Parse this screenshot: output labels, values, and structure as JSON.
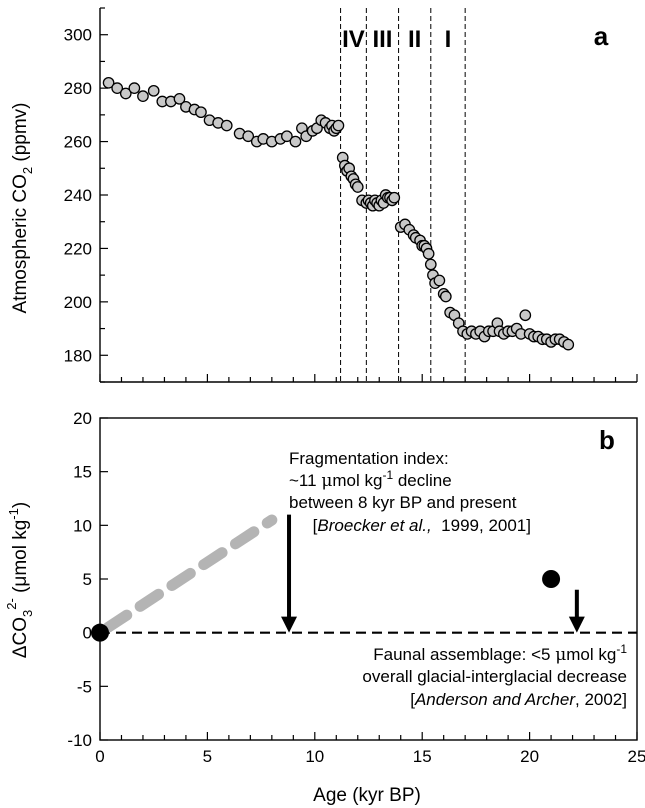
{
  "chart_data": [
    {
      "panel": "a",
      "type": "scatter",
      "ylabel": "Atmospheric CO2 (ppmv)",
      "ylabel_parts": {
        "main": "Atmospheric CO",
        "sub": "2",
        "units": " (ppmv)"
      },
      "xlim": [
        0,
        25
      ],
      "ylim": [
        170,
        310
      ],
      "yticks": [
        180,
        200,
        220,
        240,
        260,
        280,
        300
      ],
      "yminor": [
        170,
        190,
        210,
        230,
        250,
        270,
        290,
        310
      ],
      "stage_boundaries": [
        11.2,
        12.4,
        13.9,
        15.4,
        17.0
      ],
      "stages": [
        {
          "label": "IV",
          "x": 11.8
        },
        {
          "label": "III",
          "x": 13.15
        },
        {
          "label": "II",
          "x": 14.65
        },
        {
          "label": "I",
          "x": 16.2
        }
      ],
      "marker": {
        "fill": "#c8c8c8",
        "stroke": "#000000"
      },
      "points": [
        [
          0.4,
          282
        ],
        [
          0.8,
          280
        ],
        [
          1.2,
          278
        ],
        [
          1.6,
          280
        ],
        [
          2.0,
          277
        ],
        [
          2.5,
          279
        ],
        [
          2.9,
          275
        ],
        [
          3.3,
          275
        ],
        [
          3.7,
          276
        ],
        [
          4.0,
          273
        ],
        [
          4.4,
          272
        ],
        [
          4.7,
          271
        ],
        [
          5.1,
          268
        ],
        [
          5.5,
          267
        ],
        [
          5.9,
          266
        ],
        [
          6.5,
          263
        ],
        [
          6.9,
          262
        ],
        [
          7.3,
          260
        ],
        [
          7.6,
          261
        ],
        [
          8.0,
          260
        ],
        [
          8.4,
          261
        ],
        [
          8.7,
          262
        ],
        [
          9.1,
          260
        ],
        [
          9.4,
          265
        ],
        [
          9.6,
          262
        ],
        [
          9.9,
          264
        ],
        [
          10.1,
          265
        ],
        [
          10.3,
          268
        ],
        [
          10.5,
          267
        ],
        [
          10.7,
          265
        ],
        [
          10.8,
          266
        ],
        [
          10.9,
          264
        ],
        [
          11.0,
          265
        ],
        [
          11.1,
          266
        ],
        [
          11.3,
          254
        ],
        [
          11.4,
          251
        ],
        [
          11.5,
          249
        ],
        [
          11.6,
          250
        ],
        [
          11.7,
          247
        ],
        [
          11.8,
          246
        ],
        [
          11.9,
          244
        ],
        [
          12.0,
          243
        ],
        [
          12.2,
          238
        ],
        [
          12.4,
          237
        ],
        [
          12.5,
          238
        ],
        [
          12.6,
          237
        ],
        [
          12.7,
          236
        ],
        [
          12.8,
          238
        ],
        [
          12.9,
          237
        ],
        [
          13.0,
          236
        ],
        [
          13.1,
          238
        ],
        [
          13.2,
          237
        ],
        [
          13.3,
          240
        ],
        [
          13.4,
          239
        ],
        [
          13.5,
          239
        ],
        [
          13.6,
          238
        ],
        [
          13.7,
          239
        ],
        [
          14.0,
          228
        ],
        [
          14.2,
          229
        ],
        [
          14.4,
          227
        ],
        [
          14.6,
          225
        ],
        [
          14.7,
          224
        ],
        [
          14.9,
          223
        ],
        [
          15.0,
          221
        ],
        [
          15.1,
          221
        ],
        [
          15.2,
          220
        ],
        [
          15.3,
          218
        ],
        [
          15.4,
          214
        ],
        [
          15.5,
          210
        ],
        [
          15.6,
          207
        ],
        [
          15.8,
          208
        ],
        [
          16.0,
          203
        ],
        [
          16.1,
          202
        ],
        [
          16.3,
          196
        ],
        [
          16.5,
          195
        ],
        [
          16.7,
          192
        ],
        [
          16.9,
          189
        ],
        [
          17.1,
          188
        ],
        [
          17.3,
          189
        ],
        [
          17.5,
          188
        ],
        [
          17.7,
          189
        ],
        [
          17.9,
          187
        ],
        [
          18.1,
          189
        ],
        [
          18.3,
          189
        ],
        [
          18.5,
          192
        ],
        [
          18.6,
          189
        ],
        [
          18.8,
          188
        ],
        [
          19.0,
          189
        ],
        [
          19.2,
          189
        ],
        [
          19.4,
          190
        ],
        [
          19.6,
          188
        ],
        [
          19.8,
          195
        ],
        [
          20.0,
          188
        ],
        [
          20.2,
          187
        ],
        [
          20.4,
          187
        ],
        [
          20.6,
          186
        ],
        [
          20.8,
          186
        ],
        [
          21.0,
          185
        ],
        [
          21.2,
          186
        ],
        [
          21.4,
          186
        ],
        [
          21.6,
          185
        ],
        [
          21.8,
          184
        ]
      ]
    },
    {
      "panel": "b",
      "type": "line",
      "xlabel": "Age (kyr BP)",
      "ylabel_parts": {
        "main": "ΔCO",
        "sub": "3",
        "sup": "2-",
        "units": " (μmol kg",
        "units_sup": "-1",
        "units_end": ")"
      },
      "xlim": [
        0,
        25
      ],
      "ylim": [
        -10,
        20
      ],
      "xticks": [
        0,
        5,
        10,
        15,
        20,
        25
      ],
      "yticks": [
        -10,
        -5,
        0,
        5,
        10,
        15,
        20
      ],
      "series": [
        {
          "style": "thick gray dashed",
          "color": "#b4b4b4",
          "x": [
            0,
            8
          ],
          "y": [
            0,
            10.5
          ]
        },
        {
          "style": "black dashed zero line",
          "color": "#000000",
          "x": [
            0,
            25
          ],
          "y": [
            0,
            0
          ]
        }
      ],
      "points": [
        {
          "x": 0,
          "y": 0,
          "color": "#000000"
        },
        {
          "x": 21,
          "y": 5,
          "color": "#000000"
        }
      ],
      "arrows": [
        {
          "x": 8.8,
          "y_from": 11,
          "y_to": 0
        },
        {
          "x": 22.2,
          "y_from": 4,
          "y_to": 0
        }
      ],
      "annotations": {
        "fragmentation": {
          "line1": "Fragmentation index:",
          "line2_prefix": "~11 ",
          "line2_mu": "μ",
          "line2_mid": "mol kg",
          "line2_sup": "-1",
          "line2_end": " decline",
          "line3": "between 8 kyr BP and present",
          "line4_open": "[",
          "line4_author": "Broecker et al.,",
          "line4_years": "  1999, 2001]"
        },
        "faunal": {
          "line1_prefix": "Faunal assemblage: <5 ",
          "line1_mu": "μ",
          "line1_mid": "mol kg",
          "line1_sup": "-1",
          "line2": "overall glacial-interglacial decrease",
          "line3_open": "[",
          "line3_author": "Anderson and Archer",
          "line3_end": ", 2002]"
        }
      }
    }
  ]
}
